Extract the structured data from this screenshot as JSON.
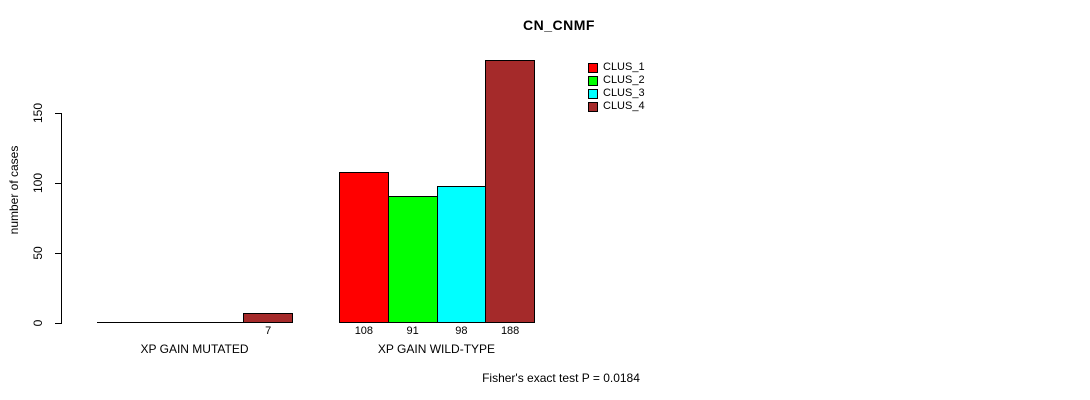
{
  "chart_data": {
    "type": "bar",
    "title": "CN_CNMF",
    "xlabel": "",
    "ylabel": "number of cases",
    "categories": [
      "XP GAIN MUTATED",
      "XP GAIN WILD-TYPE"
    ],
    "series": [
      {
        "name": "CLUS_1",
        "color": "#FF0000",
        "values": [
          0,
          108
        ]
      },
      {
        "name": "CLUS_2",
        "color": "#00FF00",
        "values": [
          0,
          91
        ]
      },
      {
        "name": "CLUS_3",
        "color": "#00FFFF",
        "values": [
          0,
          98
        ]
      },
      {
        "name": "CLUS_4",
        "color": "#A52A2A",
        "values": [
          7,
          188
        ]
      }
    ],
    "yticks": [
      0,
      50,
      100,
      150
    ],
    "ylim": [
      0,
      188
    ],
    "grid": false,
    "legend_position": "top-right",
    "bar_outline_color": "#000000",
    "background_color": "#FFFFFF",
    "annotation": "Fisher's exact test P = 0.0184"
  }
}
